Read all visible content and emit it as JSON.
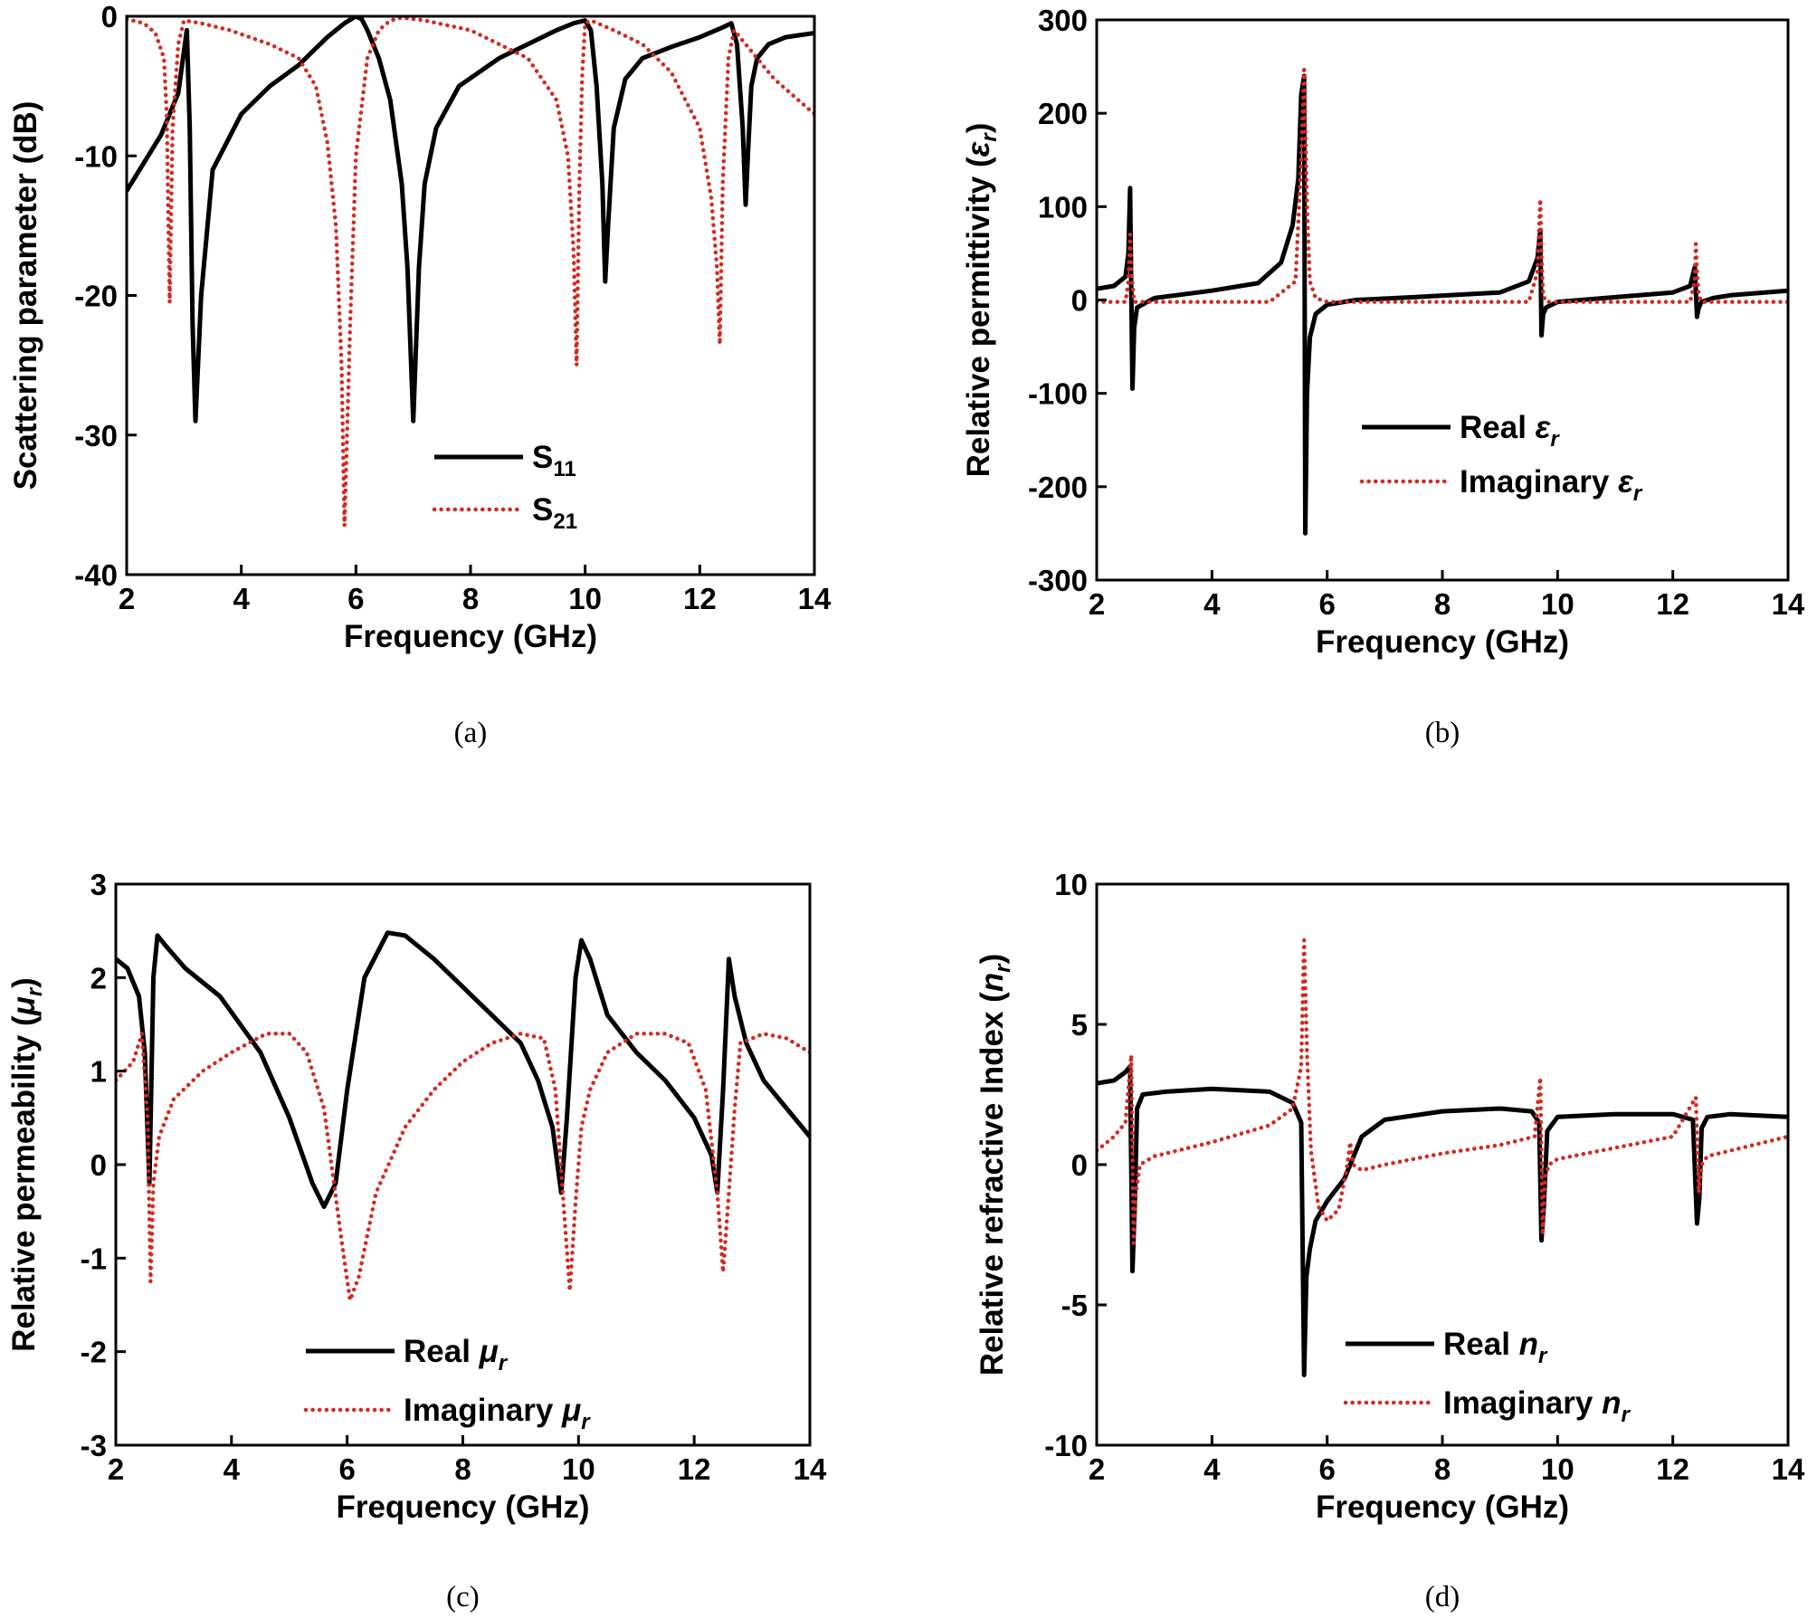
{
  "chart_data": [
    {
      "type": "line",
      "panel": "a",
      "caption": "(a)",
      "xlabel": "Frequency (GHz)",
      "ylabel": "Scattering parameter (dB)",
      "xlim": [
        2,
        14
      ],
      "ylim": [
        -40,
        0
      ],
      "xticks": [
        "2",
        "4",
        "6",
        "8",
        "10",
        "12",
        "14"
      ],
      "yticks": [
        "0",
        "-10",
        "-20",
        "-30",
        "-40"
      ],
      "legend": {
        "location": "lower-center"
      },
      "series": [
        {
          "name": "S11",
          "label_main": "S",
          "label_sub": "11",
          "style": "solid",
          "color": "#000000",
          "x": [
            2.0,
            2.3,
            2.6,
            2.9,
            3.0,
            3.05,
            3.1,
            3.15,
            3.2,
            3.3,
            3.5,
            4.0,
            4.5,
            5.0,
            5.5,
            5.8,
            6.0,
            6.1,
            6.2,
            6.4,
            6.6,
            6.8,
            6.9,
            7.0,
            7.1,
            7.2,
            7.4,
            7.8,
            8.5,
            9.0,
            9.5,
            9.8,
            10.0,
            10.1,
            10.2,
            10.3,
            10.35,
            10.4,
            10.5,
            10.7,
            11.0,
            11.5,
            12.0,
            12.4,
            12.55,
            12.65,
            12.75,
            12.8,
            12.85,
            12.9,
            13.0,
            13.2,
            13.5,
            14.0
          ],
          "y": [
            -12.5,
            -10.5,
            -8.5,
            -5.5,
            -2.5,
            -1,
            -8,
            -22,
            -29,
            -20,
            -11,
            -7,
            -5,
            -3.5,
            -1.5,
            -0.5,
            0,
            -0.2,
            -1,
            -3,
            -6,
            -12,
            -18,
            -29,
            -18,
            -12,
            -8,
            -5,
            -3,
            -2,
            -1,
            -0.5,
            -0.3,
            -1,
            -5,
            -12,
            -19,
            -15,
            -8,
            -4.5,
            -3,
            -2.2,
            -1.5,
            -0.8,
            -0.5,
            -2,
            -8,
            -13.5,
            -9,
            -5,
            -3,
            -2,
            -1.5,
            -1.2
          ]
        },
        {
          "name": "S21",
          "label_main": "S",
          "label_sub": "21",
          "style": "dotted",
          "color": "#d22a22",
          "x": [
            2.0,
            2.3,
            2.5,
            2.65,
            2.7,
            2.75,
            2.8,
            2.9,
            3.0,
            3.3,
            3.8,
            4.5,
            5.0,
            5.3,
            5.5,
            5.65,
            5.75,
            5.8,
            5.9,
            6.0,
            6.2,
            6.4,
            6.6,
            6.8,
            7.2,
            8.0,
            9.0,
            9.5,
            9.7,
            9.8,
            9.85,
            9.9,
            9.95,
            10.0,
            10.1,
            10.5,
            11.0,
            11.5,
            12.0,
            12.2,
            12.3,
            12.35,
            12.4,
            12.5,
            12.6,
            12.8,
            13.3,
            14.0
          ],
          "y": [
            -0.2,
            -0.5,
            -1.2,
            -3,
            -7,
            -20.5,
            -8,
            -2,
            -0.3,
            -0.5,
            -1,
            -2,
            -3,
            -5,
            -9,
            -15,
            -25,
            -36.5,
            -22,
            -10,
            -3,
            -1,
            -0.3,
            -0.1,
            -0.3,
            -1,
            -3,
            -6,
            -10,
            -17,
            -25,
            -12,
            -4,
            -0.5,
            -0.3,
            -1,
            -2,
            -4,
            -8,
            -13,
            -18,
            -23.5,
            -12,
            -3,
            -1,
            -2,
            -4.5,
            -7
          ]
        }
      ]
    },
    {
      "type": "line",
      "panel": "b",
      "caption": "(b)",
      "xlabel": "Frequency (GHz)",
      "ylabel_main": "Relative permittivity (",
      "ylabel_sym": "ε",
      "ylabel_sub": "r",
      "ylabel_end": ")",
      "xlim": [
        2,
        14
      ],
      "ylim": [
        -300,
        300
      ],
      "xticks": [
        "2",
        "4",
        "6",
        "8",
        "10",
        "12",
        "14"
      ],
      "yticks": [
        "300",
        "200",
        "100",
        "0",
        "-100",
        "-200",
        "-300"
      ],
      "legend": {
        "location": "lower-right"
      },
      "series": [
        {
          "name": "Real εr",
          "label_main": "Real ",
          "label_sym": "ε",
          "label_sub": "r",
          "style": "solid",
          "color": "#000000",
          "x": [
            2.0,
            2.3,
            2.5,
            2.55,
            2.58,
            2.6,
            2.62,
            2.65,
            2.7,
            3.0,
            4.0,
            4.8,
            5.2,
            5.4,
            5.5,
            5.55,
            5.6,
            5.62,
            5.65,
            5.7,
            5.8,
            6.0,
            6.5,
            7.5,
            9.0,
            9.5,
            9.65,
            9.7,
            9.72,
            9.75,
            9.8,
            10.0,
            11.0,
            12.0,
            12.3,
            12.38,
            12.42,
            12.45,
            12.5,
            12.7,
            13.0,
            14.0
          ],
          "y": [
            12,
            15,
            25,
            50,
            120,
            10,
            -95,
            -30,
            -8,
            2,
            10,
            18,
            40,
            80,
            130,
            220,
            240,
            -250,
            -100,
            -40,
            -15,
            -5,
            0,
            3,
            8,
            20,
            45,
            75,
            -38,
            -15,
            -8,
            -2,
            3,
            8,
            15,
            35,
            -18,
            -8,
            -2,
            2,
            5,
            10
          ]
        },
        {
          "name": "Imaginary εr",
          "label_main": "Imaginary ",
          "label_sym": "ε",
          "label_sub": "r",
          "style": "dotted",
          "color": "#d22a22",
          "x": [
            2.0,
            2.5,
            2.55,
            2.58,
            2.6,
            2.65,
            3.0,
            5.0,
            5.45,
            5.55,
            5.6,
            5.65,
            5.7,
            5.8,
            6.0,
            9.5,
            9.65,
            9.7,
            9.72,
            9.75,
            9.8,
            12.3,
            12.38,
            12.4,
            12.42,
            12.45,
            12.5,
            14.0
          ],
          "y": [
            -2,
            -2,
            20,
            70,
            30,
            -2,
            -2,
            -2,
            20,
            150,
            250,
            100,
            20,
            2,
            -2,
            -2,
            30,
            108,
            50,
            5,
            -2,
            -2,
            20,
            60,
            30,
            5,
            -2,
            -2
          ]
        }
      ]
    },
    {
      "type": "line",
      "panel": "c",
      "caption": "(c)",
      "xlabel": "Frequency (GHz)",
      "ylabel_main": "Relative permeability (",
      "ylabel_sym": "μ",
      "ylabel_sub": "r",
      "ylabel_end": ")",
      "xlim": [
        2,
        14
      ],
      "ylim": [
        -3,
        3
      ],
      "xticks": [
        "2",
        "4",
        "6",
        "8",
        "10",
        "12",
        "14"
      ],
      "yticks": [
        "3",
        "2",
        "1",
        "0",
        "-1",
        "-2",
        "-3"
      ],
      "legend": {
        "location": "lower-center"
      },
      "series": [
        {
          "name": "Real μr",
          "label_main": "Real ",
          "label_sym": "μ",
          "label_sub": "r",
          "style": "solid",
          "color": "#000000",
          "x": [
            2.0,
            2.2,
            2.4,
            2.5,
            2.58,
            2.65,
            2.72,
            2.85,
            3.2,
            3.8,
            4.5,
            5.0,
            5.4,
            5.6,
            5.8,
            6.0,
            6.3,
            6.7,
            7.0,
            7.5,
            8.0,
            8.5,
            9.0,
            9.3,
            9.55,
            9.7,
            9.8,
            9.95,
            10.05,
            10.2,
            10.5,
            11.0,
            11.5,
            12.0,
            12.3,
            12.4,
            12.5,
            12.6,
            12.7,
            12.9,
            13.2,
            13.6,
            14.0
          ],
          "y": [
            2.2,
            2.1,
            1.8,
            1.2,
            -0.2,
            2.0,
            2.45,
            2.35,
            2.1,
            1.8,
            1.2,
            0.5,
            -0.2,
            -0.45,
            -0.2,
            0.8,
            2.0,
            2.48,
            2.45,
            2.2,
            1.9,
            1.6,
            1.3,
            0.9,
            0.4,
            -0.3,
            0.5,
            2.0,
            2.4,
            2.2,
            1.6,
            1.2,
            0.9,
            0.5,
            0.1,
            -0.3,
            0.8,
            2.2,
            1.8,
            1.3,
            0.9,
            0.6,
            0.3
          ]
        },
        {
          "name": "Imaginary μr",
          "label_main": "Imaginary ",
          "label_sym": "μ",
          "label_sub": "r",
          "style": "dotted",
          "color": "#d22a22",
          "x": [
            2.0,
            2.3,
            2.45,
            2.55,
            2.6,
            2.65,
            2.75,
            3.0,
            3.5,
            4.0,
            4.6,
            5.0,
            5.3,
            5.6,
            5.9,
            6.05,
            6.2,
            6.5,
            7.0,
            7.5,
            8.0,
            8.5,
            9.0,
            9.4,
            9.6,
            9.75,
            9.85,
            9.95,
            10.05,
            10.2,
            10.5,
            11.0,
            11.5,
            11.9,
            12.2,
            12.4,
            12.5,
            12.6,
            12.7,
            12.8,
            13.2,
            13.6,
            14.0
          ],
          "y": [
            0.9,
            1.1,
            1.4,
            0.5,
            -1.25,
            -0.2,
            0.3,
            0.7,
            1.0,
            1.2,
            1.4,
            1.4,
            1.2,
            0.6,
            -0.8,
            -1.45,
            -1.2,
            -0.3,
            0.4,
            0.8,
            1.1,
            1.3,
            1.4,
            1.35,
            0.8,
            -0.5,
            -1.35,
            -0.4,
            0.4,
            0.8,
            1.2,
            1.4,
            1.4,
            1.3,
            0.8,
            -0.3,
            -1.15,
            -0.3,
            0.6,
            1.3,
            1.4,
            1.35,
            1.2
          ]
        }
      ]
    },
    {
      "type": "line",
      "panel": "d",
      "caption": "(d)",
      "xlabel": "Frequency (GHz)",
      "ylabel_main": "Relative refractive Index (",
      "ylabel_sym": "n",
      "ylabel_sub": "r",
      "ylabel_end": ")",
      "xlim": [
        2,
        14
      ],
      "ylim": [
        -10,
        10
      ],
      "xticks": [
        "2",
        "4",
        "6",
        "8",
        "10",
        "12",
        "14"
      ],
      "yticks": [
        "10",
        "5",
        "0",
        "-5",
        "-10"
      ],
      "legend": {
        "location": "lower-right"
      },
      "series": [
        {
          "name": "Real nr",
          "label_main": "Real ",
          "label_sym": "n",
          "label_sub": "r",
          "style": "solid",
          "color": "#000000",
          "x": [
            2.0,
            2.3,
            2.5,
            2.58,
            2.62,
            2.66,
            2.7,
            2.8,
            3.2,
            4.0,
            5.0,
            5.4,
            5.55,
            5.6,
            5.64,
            5.7,
            5.8,
            6.0,
            6.3,
            6.6,
            7.0,
            8.0,
            9.0,
            9.55,
            9.68,
            9.72,
            9.76,
            9.82,
            10.0,
            11.0,
            12.0,
            12.35,
            12.42,
            12.46,
            12.5,
            12.6,
            13.0,
            14.0
          ],
          "y": [
            2.9,
            3.0,
            3.3,
            3.5,
            -3.8,
            -1.5,
            2.0,
            2.5,
            2.6,
            2.7,
            2.6,
            2.2,
            1.5,
            -7.5,
            -4.0,
            -3.0,
            -2.0,
            -1.3,
            -0.5,
            1.0,
            1.6,
            1.9,
            2.0,
            1.9,
            1.5,
            -2.7,
            -1.5,
            1.2,
            1.7,
            1.8,
            1.8,
            1.6,
            -2.1,
            -1.2,
            1.3,
            1.7,
            1.8,
            1.7
          ]
        },
        {
          "name": "Imaginary nr",
          "label_main": "Imaginary ",
          "label_sym": "n",
          "label_sub": "r",
          "style": "dotted",
          "color": "#d22a22",
          "x": [
            2.0,
            2.3,
            2.5,
            2.6,
            2.64,
            2.68,
            2.75,
            3.0,
            4.0,
            5.0,
            5.4,
            5.55,
            5.6,
            5.65,
            5.72,
            5.85,
            6.0,
            6.2,
            6.35,
            6.4,
            6.45,
            6.6,
            7.0,
            8.0,
            9.0,
            9.6,
            9.7,
            9.74,
            9.78,
            9.85,
            10.0,
            11.0,
            12.0,
            12.4,
            12.45,
            12.5,
            12.6,
            13.0,
            14.0
          ],
          "y": [
            0.5,
            1.0,
            1.5,
            3.9,
            -2.8,
            -1.0,
            0.0,
            0.3,
            0.8,
            1.4,
            2.0,
            3.5,
            8.0,
            4.0,
            0.5,
            -1.5,
            -2.0,
            -1.6,
            0.0,
            0.8,
            0.0,
            -0.2,
            0.0,
            0.4,
            0.7,
            1.0,
            3.1,
            -2.5,
            -0.5,
            0.0,
            0.2,
            0.6,
            1.0,
            2.4,
            -1.0,
            0.0,
            0.3,
            0.5,
            1.0
          ]
        }
      ]
    }
  ]
}
